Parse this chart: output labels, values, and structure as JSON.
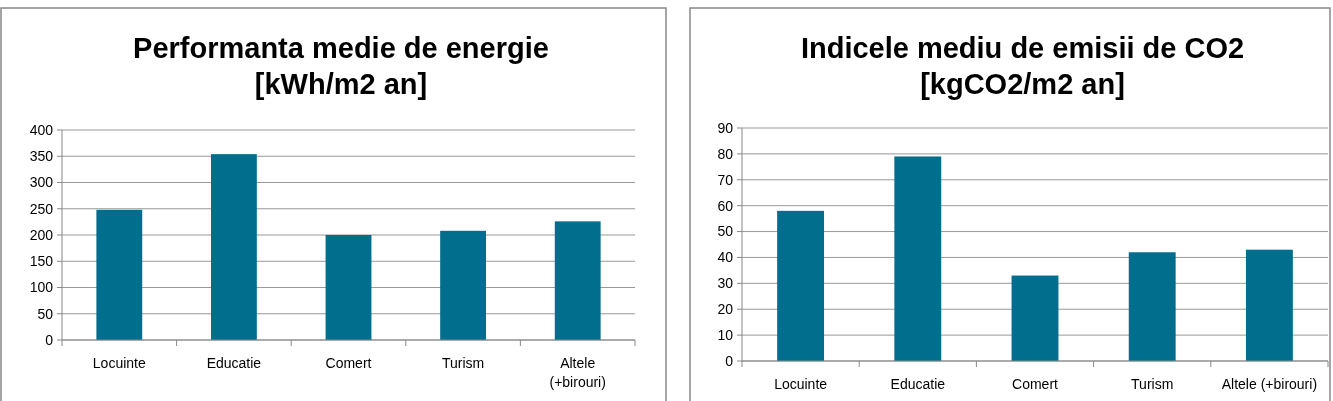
{
  "chart_data": [
    {
      "type": "bar",
      "title": "Performanta medie de energie\n[kWh/m2 an]",
      "categories": [
        "Locuinte",
        "Educatie",
        "Comert",
        "Turism",
        "Altele (+birouri)"
      ],
      "values": [
        248,
        354,
        200,
        208,
        226
      ],
      "color": "#006e8c",
      "ylim": [
        0,
        400
      ],
      "yticks": [
        0,
        50,
        100,
        150,
        200,
        250,
        300,
        350,
        400
      ],
      "grid": "y"
    },
    {
      "type": "bar",
      "title": "Indicele mediu de emisii de CO2\n[kgCO2/m2 an]",
      "categories": [
        "Locuinte",
        "Educatie",
        "Comert",
        "Turism",
        "Altele (+birouri)"
      ],
      "values": [
        58,
        79,
        33,
        42,
        43
      ],
      "color": "#006e8c",
      "ylim": [
        0,
        90
      ],
      "yticks": [
        0,
        10,
        20,
        30,
        40,
        50,
        60,
        70,
        80,
        90
      ],
      "grid": "y"
    }
  ]
}
